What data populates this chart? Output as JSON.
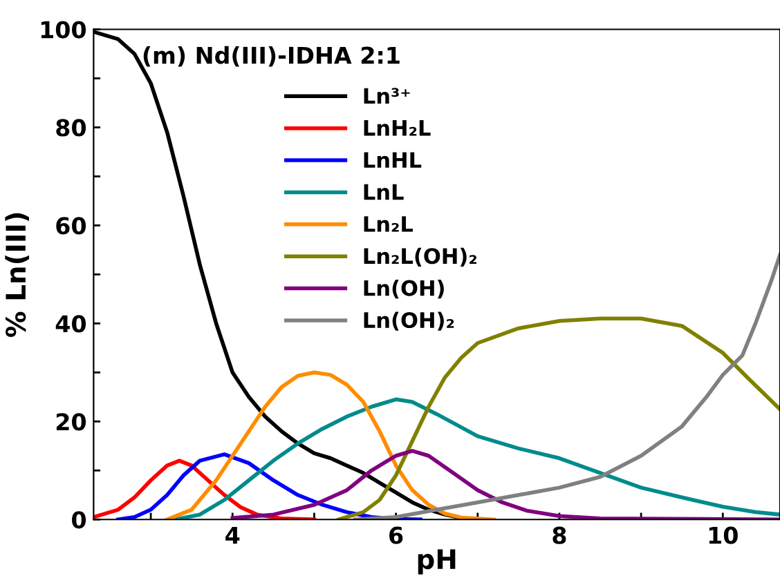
{
  "chart_data": {
    "type": "line",
    "title": "(m) Nd(III)-IDHA 2:1",
    "xlabel": "pH",
    "ylabel": "% Ln(III)",
    "xlim": [
      2.3,
      10.7
    ],
    "ylim": [
      0,
      100
    ],
    "xticks": [
      {
        "value": 3,
        "label": null
      },
      4,
      {
        "value": 5,
        "label": null
      },
      6,
      {
        "value": 7,
        "label": null
      },
      8,
      {
        "value": 9,
        "label": null
      },
      10
    ],
    "yticks": [
      0,
      {
        "value": 10,
        "label": null
      },
      20,
      {
        "value": 30,
        "label": null
      },
      40,
      {
        "value": 50,
        "label": null
      },
      60,
      {
        "value": 70,
        "label": null
      },
      80,
      {
        "value": 90,
        "label": null
      },
      100
    ],
    "grid": false,
    "legend": "top",
    "marker": "none",
    "line_style": "solid",
    "series": [
      {
        "name": "Ln³⁺",
        "color": "#000000",
        "x": [
          2.3,
          2.6,
          2.8,
          3.0,
          3.2,
          3.4,
          3.6,
          3.8,
          4.0,
          4.2,
          4.4,
          4.6,
          4.8,
          5.0,
          5.2,
          5.4,
          5.6,
          5.8,
          6.0,
          6.2,
          6.4,
          6.6,
          6.8,
          7.0
        ],
        "values": [
          99.5,
          98,
          95,
          89,
          79,
          66,
          52,
          40,
          30,
          25,
          21,
          18,
          15.5,
          13.5,
          12.5,
          11,
          9.5,
          7.5,
          5.5,
          3.5,
          2,
          1,
          0.3,
          0
        ]
      },
      {
        "name": "LnH₂L",
        "color": "#ff0000",
        "x": [
          2.3,
          2.6,
          2.8,
          3.0,
          3.2,
          3.35,
          3.5,
          3.7,
          3.9,
          4.1,
          4.3,
          4.6,
          5.0
        ],
        "values": [
          0.5,
          2,
          4.5,
          8,
          11,
          12,
          11,
          8,
          5,
          2.5,
          1,
          0.2,
          0
        ]
      },
      {
        "name": "LnHL",
        "color": "#0000ff",
        "x": [
          2.6,
          2.8,
          3.0,
          3.2,
          3.4,
          3.6,
          3.9,
          4.2,
          4.5,
          4.8,
          5.1,
          5.4,
          5.7,
          6.0,
          6.3
        ],
        "values": [
          0,
          0.5,
          2,
          5,
          9,
          12,
          13.3,
          11.5,
          8,
          5,
          3,
          1.5,
          0.5,
          0.1,
          0
        ]
      },
      {
        "name": "LnL",
        "color": "#008b8b",
        "x": [
          3.3,
          3.6,
          3.9,
          4.2,
          4.5,
          4.8,
          5.1,
          5.4,
          5.7,
          6.0,
          6.2,
          6.5,
          7.0,
          7.5,
          8.0,
          8.5,
          9.0,
          9.5,
          10.0,
          10.4,
          10.7
        ],
        "values": [
          0,
          1,
          4,
          8,
          12,
          15.5,
          18.5,
          21,
          23,
          24.5,
          24,
          21.5,
          17,
          14.5,
          12.5,
          9.5,
          6.5,
          4.5,
          2.6,
          1.5,
          1
        ]
      },
      {
        "name": "Ln₂L",
        "color": "#ff8c00",
        "x": [
          3.2,
          3.5,
          3.8,
          4.0,
          4.2,
          4.4,
          4.6,
          4.8,
          5.0,
          5.2,
          5.4,
          5.6,
          5.8,
          6.0,
          6.2,
          6.4,
          6.6,
          6.8,
          7.2
        ],
        "values": [
          0,
          2,
          8,
          13,
          18,
          23,
          27,
          29.3,
          30,
          29.5,
          27.5,
          24,
          18,
          11,
          6,
          3,
          1.2,
          0.4,
          0
        ]
      },
      {
        "name": "Ln₂L(OH)₂",
        "color": "#808000",
        "x": [
          5.3,
          5.6,
          5.8,
          6.0,
          6.2,
          6.4,
          6.6,
          6.8,
          7.0,
          7.5,
          8.0,
          8.5,
          9.0,
          9.5,
          10.0,
          10.3,
          10.7
        ],
        "values": [
          0,
          1.5,
          4,
          9,
          16,
          23,
          29,
          33,
          36,
          39,
          40.5,
          41,
          41,
          39.5,
          34,
          29,
          22.5
        ]
      },
      {
        "name": "Ln(OH)",
        "color": "#800080",
        "x": [
          4.0,
          4.5,
          5.0,
          5.4,
          5.7,
          6.0,
          6.2,
          6.4,
          6.7,
          7.0,
          7.3,
          7.6,
          8.0,
          8.5,
          10.7
        ],
        "values": [
          0.3,
          1,
          3,
          6,
          10,
          13,
          14,
          13,
          9.5,
          6,
          3.5,
          1.8,
          0.7,
          0.2,
          0
        ]
      },
      {
        "name": "Ln(OH)₂",
        "color": "#808080",
        "x": [
          5.5,
          6.0,
          6.5,
          7.0,
          7.5,
          8.0,
          8.5,
          9.0,
          9.5,
          9.8,
          10.0,
          10.24,
          10.4,
          10.6,
          10.7
        ],
        "values": [
          0,
          0.5,
          2,
          3.5,
          5,
          6.5,
          8.7,
          13,
          19,
          25,
          29.5,
          33.5,
          40,
          49,
          54
        ]
      }
    ]
  }
}
